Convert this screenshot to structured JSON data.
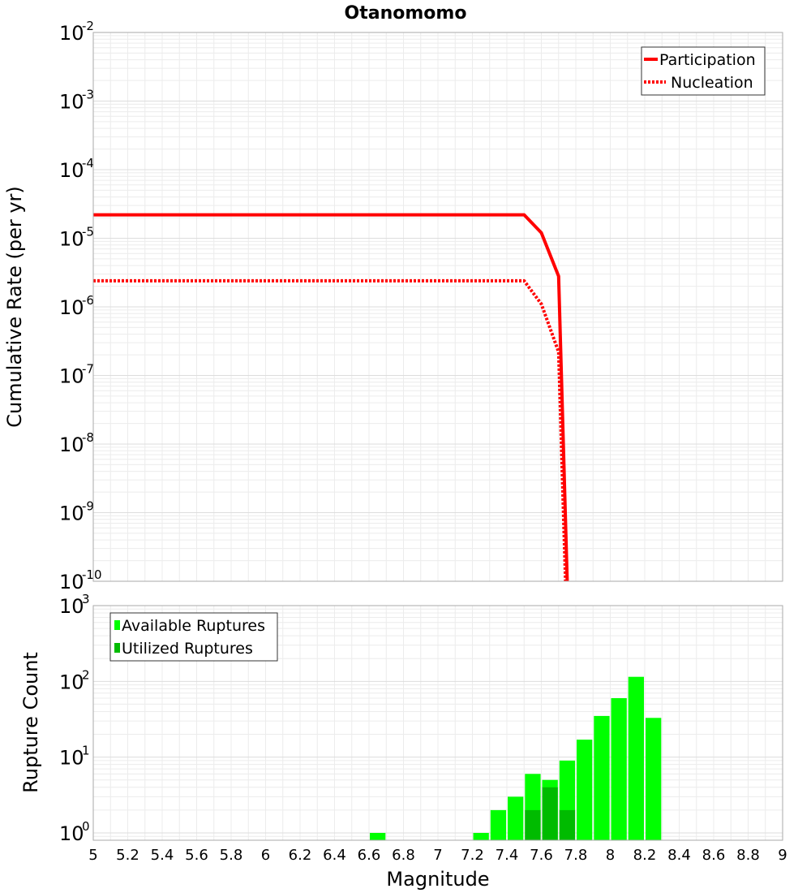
{
  "chart_data": [
    {
      "type": "line",
      "title": "Otanomomo",
      "ylabel": "Cumulative Rate (per yr)",
      "xlabel": "",
      "xlim": [
        5,
        9
      ],
      "ylim": [
        1e-10,
        0.01
      ],
      "yscale": "log",
      "y_ticks": [
        {
          "base": "10",
          "exp": "-10",
          "value": 1e-10
        },
        {
          "base": "10",
          "exp": "-9",
          "value": 1e-09
        },
        {
          "base": "10",
          "exp": "-8",
          "value": 1e-08
        },
        {
          "base": "10",
          "exp": "-7",
          "value": 1e-07
        },
        {
          "base": "10",
          "exp": "-6",
          "value": 1e-06
        },
        {
          "base": "10",
          "exp": "-5",
          "value": 1e-05
        },
        {
          "base": "10",
          "exp": "-4",
          "value": 0.0001
        },
        {
          "base": "10",
          "exp": "-3",
          "value": 0.001
        },
        {
          "base": "10",
          "exp": "-2",
          "value": 0.01
        }
      ],
      "legend_position": "top-right",
      "series": [
        {
          "name": "Participation",
          "style": "solid",
          "color": "#ff0000",
          "x": [
            5.0,
            7.5,
            7.6,
            7.7,
            7.75
          ],
          "y": [
            2.2e-05,
            2.2e-05,
            1.2e-05,
            2.8e-06,
            1e-10
          ]
        },
        {
          "name": "Nucleation",
          "style": "dotted",
          "color": "#ff0000",
          "x": [
            5.0,
            7.5,
            7.6,
            7.7,
            7.74
          ],
          "y": [
            2.4e-06,
            2.4e-06,
            1.1e-06,
            2.2e-07,
            1e-10
          ]
        }
      ]
    },
    {
      "type": "bar",
      "title": "",
      "ylabel": "Rupture Count",
      "xlabel": "Magnitude",
      "xlim": [
        5,
        9
      ],
      "ylim": [
        0.8,
        1000
      ],
      "yscale": "log",
      "bin_width": 0.1,
      "y_ticks": [
        {
          "base": "10",
          "exp": "0",
          "value": 1
        },
        {
          "base": "10",
          "exp": "1",
          "value": 10
        },
        {
          "base": "10",
          "exp": "2",
          "value": 100
        },
        {
          "base": "10",
          "exp": "3",
          "value": 1000
        }
      ],
      "x_ticks": [
        "5",
        "5.2",
        "5.4",
        "5.6",
        "5.8",
        "6",
        "6.2",
        "6.4",
        "6.6",
        "6.8",
        "7",
        "7.2",
        "7.4",
        "7.6",
        "7.8",
        "8",
        "8.2",
        "8.4",
        "8.6",
        "8.8",
        "9"
      ],
      "legend_position": "top-left",
      "series": [
        {
          "name": "Available Ruptures",
          "color": "#00ff00",
          "x": [
            6.65,
            7.25,
            7.35,
            7.45,
            7.55,
            7.65,
            7.75,
            7.85,
            7.95,
            8.05,
            8.15,
            8.25
          ],
          "values": [
            1,
            1,
            2,
            3,
            6,
            5,
            9,
            17,
            35,
            60,
            115,
            33
          ]
        },
        {
          "name": "Utilized Ruptures",
          "color": "#00bb00",
          "x": [
            7.55,
            7.65,
            7.75
          ],
          "values": [
            2,
            4,
            2
          ]
        }
      ]
    }
  ]
}
